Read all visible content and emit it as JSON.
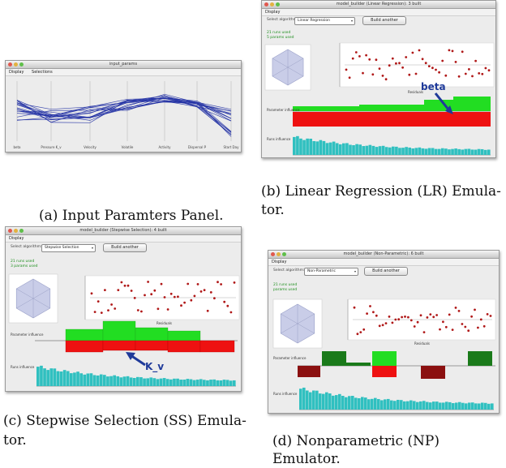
{
  "window_a": {
    "title": "input_params",
    "menu": [
      "Display",
      "Selections"
    ],
    "axis_labels": [
      "beta",
      "Pressure K_v",
      "Velocity",
      "Volatile",
      "Activity",
      "Dispersal P",
      "Start Day"
    ]
  },
  "window_b": {
    "title": "model_builder (Linear Regression): 3 built",
    "menu": [
      "Display"
    ],
    "select_label": "Select algorithm:",
    "select_value": "Linear Regression",
    "build_button": "Build another",
    "stats_line1": "21 runs used",
    "stats_line2": "5 params used",
    "axis_label": "Residuals",
    "param_label": "Parameter influence",
    "runs_label": "Runs influence",
    "annotation": "beta"
  },
  "window_c": {
    "title": "model_builder (Stepwise Selection): 4 built",
    "menu": [
      "Display"
    ],
    "select_label": "Select algorithm:",
    "select_value": "Stepwise Selection",
    "build_button": "Build another",
    "stats_line1": "21 runs used",
    "stats_line2": "3 params used",
    "axis_label": "Residuals",
    "param_label": "Parameter influence",
    "runs_label": "Runs influence",
    "annotation": "K_v"
  },
  "window_d": {
    "title": "model_builder (Non-Parametric): 6 built",
    "menu": [
      "Display"
    ],
    "select_label": "Select algorithm:",
    "select_value": "Non-Parametric",
    "build_button": "Build another",
    "stats_line1": "21 runs used",
    "stats_line2": "params used",
    "axis_label": "Residuals",
    "param_label": "Parameter influence",
    "runs_label": "Runs influence"
  },
  "captions": {
    "a": "(a) Input Paramters Panel.",
    "b_line1": "(b) Linear Regression (LR) Emula-",
    "b_line2": "tor.",
    "c_line1": "(c) Stepwise Selection (SS) Emula-",
    "c_line2": "tor.",
    "d": "(d) Nonparametric (NP) Emulator."
  },
  "colors": {
    "green": "#22dd22",
    "red": "#ee1111",
    "teal": "#30c0c0",
    "darkred": "#8b1010",
    "darkgreen": "#1a7a1a",
    "dot": "#b01818",
    "line_blue": "#2533a5",
    "arrow": "#1f3a9a"
  }
}
